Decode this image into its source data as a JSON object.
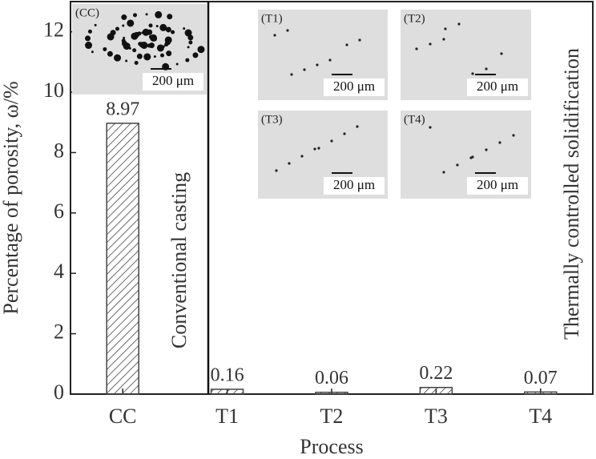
{
  "chart_data": {
    "type": "bar",
    "xlabel": "Process",
    "ylabel": "Percentage of porosity, ω/%",
    "categories": [
      "CC",
      "T1",
      "T2",
      "T3",
      "T4"
    ],
    "values": [
      8.97,
      0.16,
      0.06,
      0.22,
      0.07
    ],
    "color": "#444444",
    "ylim": [
      0,
      13
    ],
    "yticks": [
      0,
      2,
      4,
      6,
      8,
      10,
      12
    ],
    "annotations": [
      "Conventional casting",
      "Thermally controlled solidification"
    ],
    "insets": [
      {
        "label": "(CC)",
        "scale": "200 μm"
      },
      {
        "label": "(T1)",
        "scale": "200 μm"
      },
      {
        "label": "(T2)",
        "scale": "200 μm"
      },
      {
        "label": "(T3)",
        "scale": "200 μm"
      },
      {
        "label": "(T4)",
        "scale": "200 μm"
      }
    ]
  }
}
